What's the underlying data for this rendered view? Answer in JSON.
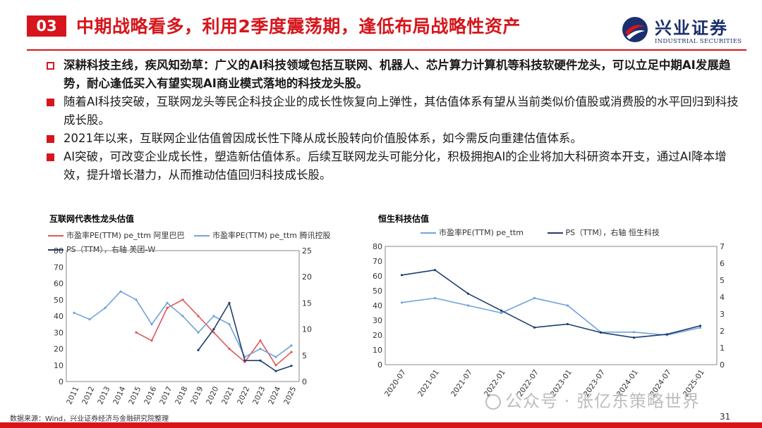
{
  "header": {
    "section_number": "03",
    "title": "中期战略看多，利用2季度震荡期，逢低布局战略性资产",
    "logo_cn": "兴业证券",
    "logo_en": "INDUSTRIAL SECURITIES"
  },
  "bullets": [
    {
      "style": "hollow",
      "bold": true,
      "text": "深耕科技主线，疾风知劲草：广义的AI科技领域包括互联网、机器人、芯片算力计算机等科技软硬件龙头，可以立足中期AI发展趋势，耐心逢低买入有望实现AI商业模式落地的科技龙头股。"
    },
    {
      "style": "solid",
      "bold": false,
      "text": "随着AI科技突破，互联网龙头等民企科技企业的成长性恢复向上弹性，其估值体系有望从当前类似价值股或消费股的水平回归到科技成长股。"
    },
    {
      "style": "solid",
      "bold": false,
      "text": "2021年以来，互联网企业估值曾因成长性下降从成长股转向价值股体系，如今需反向重建估值体系。"
    },
    {
      "style": "solid",
      "bold": false,
      "text": "AI突破，可改变企业成长性，塑造新估值体系。后续互联网龙头可能分化，积极拥抱AI的企业将加大科研资本开支，通过AI降本增效，提升增长潜力，从而推动估值回归科技成长股。"
    }
  ],
  "chart_data": [
    {
      "type": "line",
      "title": "互联网代表性龙头估值",
      "x": [
        "2011",
        "2012",
        "2013",
        "2014",
        "2015",
        "2016",
        "2017",
        "2018",
        "2019",
        "2020",
        "2021",
        "2022",
        "2023",
        "2024",
        "2025"
      ],
      "ylim": [
        0,
        80
      ],
      "y2lim": [
        0,
        25
      ],
      "yticks": [
        0,
        10,
        20,
        30,
        40,
        50,
        60,
        70,
        80
      ],
      "y2ticks": [
        0,
        5,
        10,
        15,
        20,
        25
      ],
      "series": [
        {
          "name": "市盈率PE(TTM) pe_ttm 阿里巴巴",
          "axis": "left",
          "color": "#e0575b",
          "values": [
            null,
            null,
            null,
            null,
            30,
            25,
            45,
            50,
            40,
            30,
            20,
            12,
            25,
            10,
            18
          ]
        },
        {
          "name": "市盈率PE(TTM) pe_ttm 腾讯控股",
          "axis": "left",
          "color": "#6fa3db",
          "values": [
            42,
            38,
            45,
            55,
            50,
            35,
            48,
            40,
            30,
            40,
            35,
            15,
            20,
            15,
            22
          ]
        },
        {
          "name": "PS（TTM），右轴 美团-W",
          "axis": "right",
          "color": "#1f3f6e",
          "values": [
            null,
            null,
            null,
            null,
            null,
            null,
            null,
            null,
            6,
            10,
            15,
            4,
            4,
            2,
            3
          ]
        }
      ]
    },
    {
      "type": "line",
      "title": "恒生科技估值",
      "x": [
        "2020-07",
        "2021-01",
        "2021-07",
        "2022-01",
        "2022-07",
        "2023-01",
        "2023-07",
        "2024-01",
        "2024-07",
        "2025-01"
      ],
      "ylim": [
        0,
        80
      ],
      "y2lim": [
        0,
        7
      ],
      "yticks": [
        0,
        10,
        20,
        30,
        40,
        50,
        60,
        70,
        80
      ],
      "y2ticks": [
        0,
        1,
        2,
        3,
        4,
        5,
        6,
        7
      ],
      "series": [
        {
          "name": "市盈率PE(TTM) pe_ttm",
          "axis": "left",
          "color": "#6fa3db",
          "values": [
            42,
            45,
            40,
            35,
            45,
            40,
            22,
            22,
            20,
            25
          ]
        },
        {
          "name": "PS（TTM），右轴 恒生科技",
          "axis": "right",
          "color": "#1f3f6e",
          "values": [
            5.3,
            5.6,
            4.2,
            3.2,
            2.2,
            2.4,
            1.9,
            1.6,
            1.8,
            2.3
          ]
        }
      ]
    }
  ],
  "source": "数据来源：Wind，兴业证券经济与金融研究院整理",
  "page_number": "31",
  "watermark": "公众号 · 张亿东策略世界",
  "colors": {
    "accent": "#d6161c",
    "navy": "#1b2f6e"
  }
}
